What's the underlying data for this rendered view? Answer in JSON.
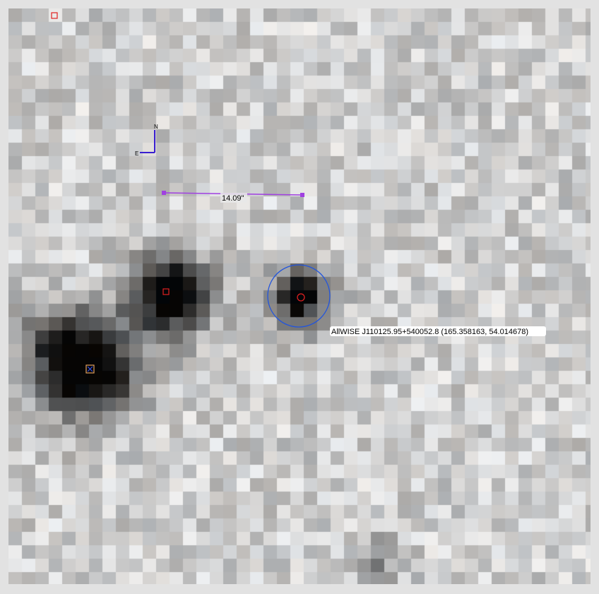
{
  "viewer": {
    "compass": {
      "north": "N",
      "east": "E"
    },
    "measurement": {
      "distance_label": "14.09\""
    },
    "target": {
      "label": "AllWISE J110125.95+540052.8 (165.358163, 54.014678)"
    },
    "colors": {
      "marker": "#e02020",
      "circle": "#2255dd",
      "compass": "#3a1fd0",
      "ruler": "#a040e0",
      "cross": "#3355ff"
    }
  }
}
